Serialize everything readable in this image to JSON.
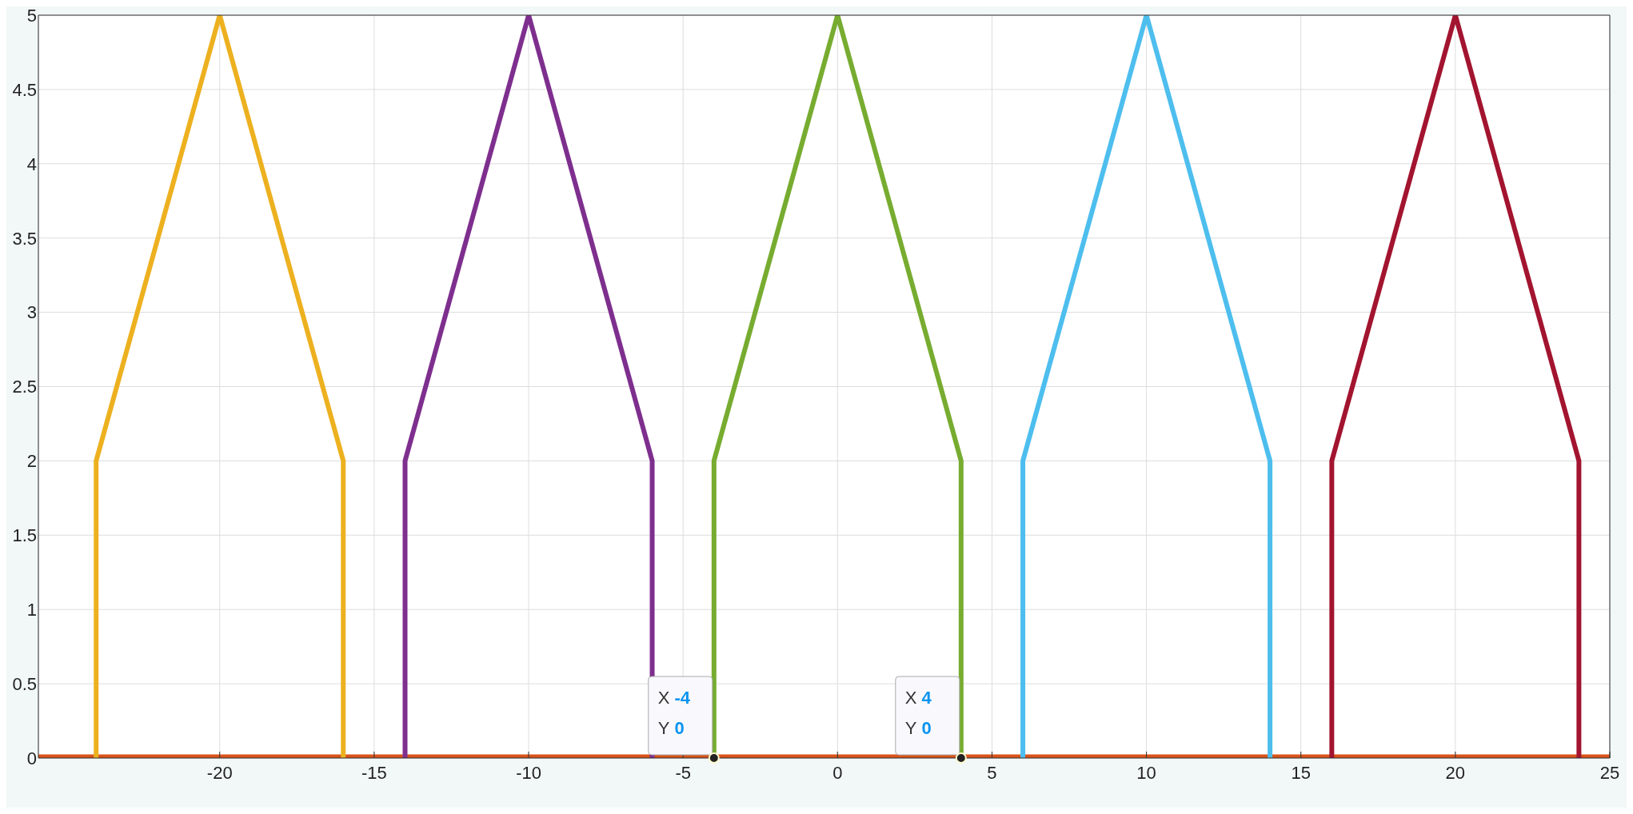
{
  "chart_data": {
    "type": "line",
    "xlim": [
      -25.87,
      25
    ],
    "xticks": [
      -20,
      -15,
      -10,
      -5,
      0,
      5,
      10,
      15,
      20,
      25
    ],
    "ylim": [
      0,
      5
    ],
    "yticks": [
      0,
      0.5,
      1,
      1.5,
      2,
      2.5,
      3,
      3.5,
      4,
      4.5,
      5
    ],
    "grid": true,
    "marker": "none",
    "line_style": "solid",
    "series": [
      {
        "color": "#d95319",
        "x": [
          -25.87,
          25
        ],
        "values": [
          0,
          0
        ]
      },
      {
        "color": "#edb120",
        "x": [
          -24,
          -24,
          -20,
          -16,
          -16
        ],
        "values": [
          0,
          2,
          5,
          2,
          0
        ]
      },
      {
        "color": "#7e2f8e",
        "x": [
          -14,
          -14,
          -10,
          -6,
          -6
        ],
        "values": [
          0,
          2,
          5,
          2,
          0
        ]
      },
      {
        "color": "#77ac30",
        "x": [
          -4,
          -4,
          0,
          4,
          4
        ],
        "values": [
          0,
          2,
          5,
          2,
          0
        ]
      },
      {
        "color": "#4dbeee",
        "x": [
          6,
          6,
          10,
          14,
          14
        ],
        "values": [
          0,
          2,
          5,
          2,
          0
        ]
      },
      {
        "color": "#a2142f",
        "x": [
          16,
          16,
          20,
          24,
          24
        ],
        "values": [
          0,
          2,
          5,
          2,
          0
        ]
      }
    ],
    "annotations": [
      {
        "text": "X -4\nY 0",
        "x": -4,
        "y": 0
      },
      {
        "text": "X 4\nY 0",
        "x": 4,
        "y": 0
      }
    ]
  }
}
